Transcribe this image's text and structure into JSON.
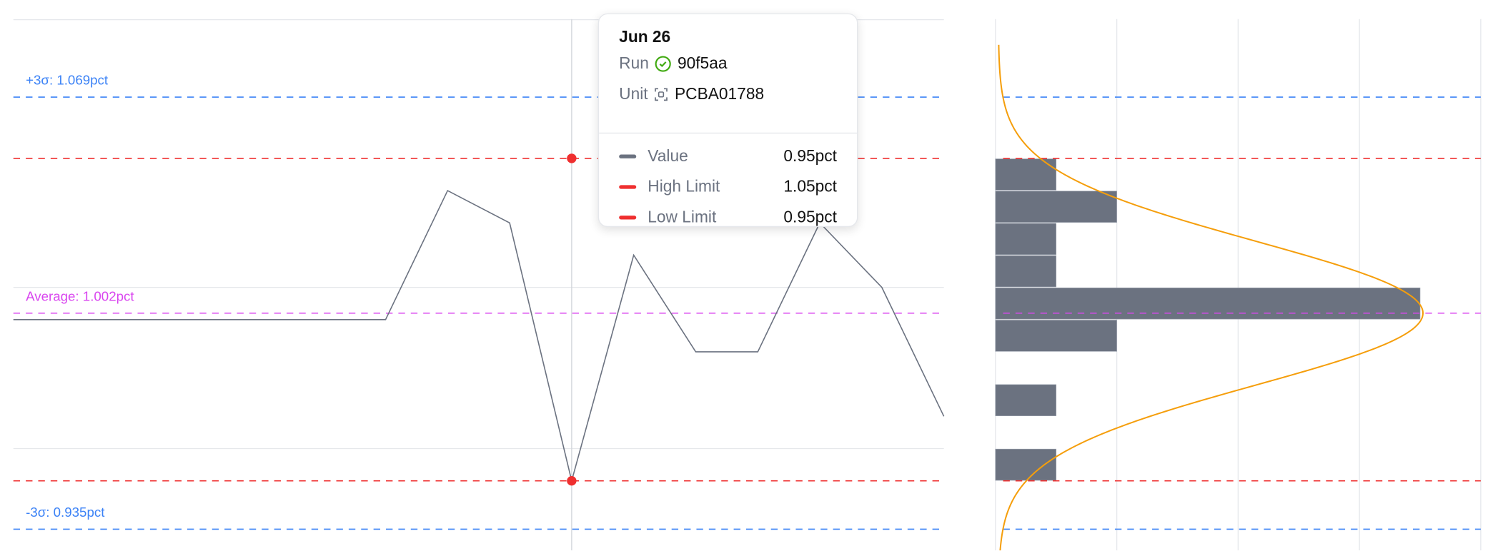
{
  "chart_data": [
    {
      "type": "line",
      "x_index": [
        0,
        1,
        2,
        3,
        4,
        5,
        6,
        7,
        8,
        9,
        10,
        11,
        12,
        13,
        14,
        15
      ],
      "values": [
        1.0,
        1.0,
        1.0,
        1.0,
        1.0,
        1.0,
        1.0,
        1.04,
        1.03,
        0.95,
        1.02,
        0.99,
        0.99,
        1.03,
        1.01,
        0.97
      ],
      "unit": "pct",
      "ylim": [
        0.912,
        1.093
      ],
      "reference_lines": [
        {
          "label": "+3σ: 1.069pct",
          "value": 1.069,
          "color": "#3b82f6",
          "style": "dashed"
        },
        {
          "label": "",
          "name": "High Limit",
          "value": 1.05,
          "color": "#ef2f2f",
          "style": "dashed"
        },
        {
          "label": "Average: 1.002pct",
          "value": 1.002,
          "color": "#d946ef",
          "style": "dashed"
        },
        {
          "label": "",
          "name": "Low Limit",
          "value": 0.95,
          "color": "#ef2f2f",
          "style": "dashed"
        },
        {
          "label": "-3σ: 0.935pct",
          "value": 0.935,
          "color": "#3b82f6",
          "style": "dashed"
        }
      ],
      "grid_values": [
        1.093,
        1.01,
        0.96
      ],
      "hover_index": 9,
      "line_color": "#6b7280"
    },
    {
      "type": "bar",
      "orientation": "horizontal",
      "bins": [
        [
          1.04,
          1.05
        ],
        [
          1.03,
          1.04
        ],
        [
          1.02,
          1.03
        ],
        [
          1.01,
          1.02
        ],
        [
          1.0,
          1.01
        ],
        [
          0.99,
          1.0
        ],
        [
          0.97,
          0.98
        ],
        [
          0.95,
          0.96
        ]
      ],
      "counts": [
        1,
        2,
        1,
        1,
        7,
        2,
        1,
        1
      ],
      "xlim": [
        0,
        8
      ],
      "x_grid": [
        0,
        2,
        4,
        6,
        8
      ],
      "bar_color": "#6b7280",
      "curve": {
        "type": "normal",
        "mean": 1.002,
        "sigma": 0.0223,
        "color": "#f59e0b"
      }
    }
  ],
  "tooltip": {
    "date": "Jun 26",
    "run_label": "Run",
    "run_id": "90f5aa",
    "unit_label": "Unit",
    "unit_id": "PCBA01788",
    "rows": [
      {
        "name": "Value",
        "value": "0.95pct",
        "color": "#6b7280"
      },
      {
        "name": "High Limit",
        "value": "1.05pct",
        "color": "#ef2f2f"
      },
      {
        "name": "Low Limit",
        "value": "0.95pct",
        "color": "#ef2f2f"
      }
    ]
  }
}
